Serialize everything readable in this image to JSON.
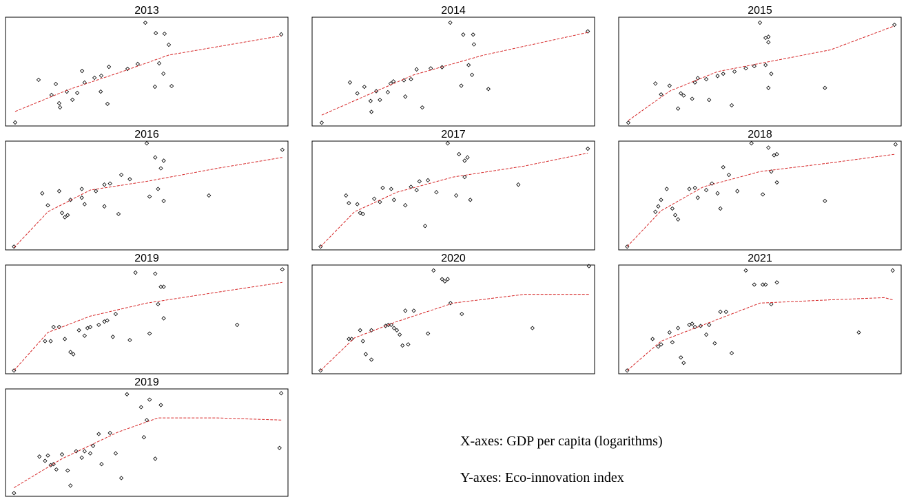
{
  "chart_data": [
    {
      "type": "scatter",
      "title": "2013",
      "xlim": [
        0,
        100
      ],
      "ylim": [
        0,
        100
      ],
      "series": [
        {
          "color": "#000000",
          "x": [
            3.4,
            11.7,
            17.8,
            16.3,
            19,
            19.3,
            21.7,
            23.7,
            25.4,
            27.1,
            28,
            31.5,
            33.9,
            33.7,
            36.6,
            36.1,
            43.2,
            46.8,
            49.5,
            53.2,
            56.3,
            57.8,
            54.4,
            55.9,
            52.9,
            58.8,
            97.6
          ],
          "values": [
            3.2,
            42.4,
            38.6,
            28.5,
            20.9,
            17.1,
            31.6,
            24.1,
            30.4,
            50.6,
            39.9,
            44.3,
            46.2,
            31.6,
            54.4,
            20.3,
            52.5,
            57,
            94.9,
            85.4,
            84.8,
            74.7,
            57.6,
            48.1,
            36.1,
            36.7,
            84.2
          ]
        },
        {
          "color": "#d62728",
          "x": [
            3.4,
            22.4,
            42,
            57.8,
            97.6
          ],
          "values": [
            13.3,
            33.5,
            50.6,
            65.2,
            82.9
          ]
        }
      ]
    },
    {
      "type": "scatter",
      "title": "2014",
      "xlim": [
        0,
        100
      ],
      "ylim": [
        0,
        100
      ],
      "series": [
        {
          "color": "#000000",
          "x": [
            3.4,
            13.4,
            16,
            18.5,
            20.7,
            21,
            22.7,
            24,
            26.8,
            27.8,
            28.8,
            32.5,
            35,
            37,
            33,
            39,
            42,
            46,
            48.9,
            53.5,
            57,
            57.3,
            55.4,
            56.6,
            52.8,
            62.4,
            97.6
          ],
          "values": [
            3,
            40,
            30,
            36,
            23,
            13,
            32,
            24,
            31,
            39,
            41,
            42,
            43,
            52,
            27,
            17,
            53,
            54,
            95,
            84,
            84,
            75,
            56,
            47,
            37,
            34,
            87
          ]
        },
        {
          "color": "#d62728",
          "x": [
            3.4,
            22.7,
            36,
            60.5,
            97.6
          ],
          "values": [
            10,
            32,
            47,
            65,
            86
          ]
        }
      ]
    },
    {
      "type": "scatter",
      "title": "2015",
      "xlim": [
        0,
        100
      ],
      "ylim": [
        0,
        100
      ],
      "series": [
        {
          "color": "#000000",
          "x": [
            3.4,
            13,
            15,
            18,
            21,
            22,
            23,
            26,
            27,
            28,
            31,
            32,
            35,
            37,
            40,
            41,
            45,
            48,
            50,
            52,
            53,
            53,
            52,
            54,
            53,
            73,
            97.6
          ],
          "values": [
            3,
            39,
            29,
            37,
            16,
            30,
            28,
            25,
            40,
            44,
            43,
            24,
            46,
            48,
            19,
            50,
            53,
            55,
            95,
            81,
            82,
            77,
            56,
            48,
            35,
            35,
            93
          ]
        },
        {
          "color": "#d62728",
          "x": [
            3.4,
            18,
            35,
            55,
            75,
            97.6
          ],
          "values": [
            5,
            32,
            50,
            60,
            70,
            92
          ]
        }
      ]
    },
    {
      "type": "scatter",
      "title": "2016",
      "xlim": [
        0,
        100
      ],
      "ylim": [
        0,
        100
      ],
      "series": [
        {
          "color": "#000000",
          "x": [
            3,
            13,
            15,
            19,
            20,
            21,
            22,
            23,
            27,
            27,
            28,
            32,
            35,
            35,
            37,
            40,
            41,
            44,
            50,
            51,
            53,
            55,
            56,
            54,
            56,
            72,
            98
          ],
          "values": [
            3,
            52,
            41,
            54,
            34,
            30,
            32,
            46,
            48,
            56,
            42,
            54,
            40,
            60,
            61,
            33,
            69,
            65,
            98,
            49,
            85,
            75,
            82,
            56,
            45,
            50,
            92
          ]
        },
        {
          "color": "#d62728",
          "x": [
            3,
            15,
            30,
            50,
            75,
            98
          ],
          "values": [
            2,
            35,
            55,
            63,
            75,
            85
          ]
        }
      ]
    },
    {
      "type": "scatter",
      "title": "2017",
      "xlim": [
        0,
        100
      ],
      "ylim": [
        0,
        100
      ],
      "series": [
        {
          "color": "#000000",
          "x": [
            3,
            12,
            13,
            16,
            17,
            18,
            22,
            24,
            25,
            28,
            29,
            33,
            35,
            37,
            38,
            40,
            41,
            44,
            48,
            51,
            52,
            54,
            55,
            54,
            56,
            73,
            97.6
          ],
          "values": [
            3,
            50,
            43,
            42,
            34,
            33,
            47,
            44,
            57,
            56,
            46,
            41,
            58,
            55,
            63,
            22,
            64,
            53,
            98,
            50,
            88,
            82,
            85,
            67,
            46,
            60,
            93
          ]
        },
        {
          "color": "#d62728",
          "x": [
            3,
            15,
            30,
            50,
            75,
            97.6
          ],
          "values": [
            3,
            35,
            53,
            67,
            77,
            89
          ]
        }
      ]
    },
    {
      "type": "scatter",
      "title": "2018",
      "xlim": [
        0,
        100
      ],
      "ylim": [
        0,
        100
      ],
      "series": [
        {
          "color": "#000000",
          "x": [
            3,
            13,
            14,
            15,
            17,
            19,
            20,
            21,
            25,
            27,
            28,
            31,
            33,
            35,
            36,
            37,
            39,
            42,
            47,
            51,
            53,
            55,
            56,
            54,
            56,
            73,
            98
          ],
          "values": [
            3,
            35,
            40,
            46,
            56,
            38,
            32,
            28,
            56,
            57,
            48,
            55,
            61,
            52,
            38,
            76,
            69,
            54,
            98,
            51,
            94,
            87,
            88,
            72,
            62,
            45,
            97
          ]
        },
        {
          "color": "#d62728",
          "x": [
            3,
            15,
            30,
            50,
            75,
            98
          ],
          "values": [
            3,
            36,
            58,
            72,
            80,
            88
          ]
        }
      ]
    },
    {
      "type": "scatter",
      "title": "2019",
      "xlim": [
        0,
        100
      ],
      "ylim": [
        0,
        100
      ],
      "series": [
        {
          "color": "#000000",
          "x": [
            3,
            14,
            16,
            17,
            19,
            21,
            23,
            24,
            26,
            28,
            29,
            30,
            33,
            35,
            36,
            38,
            39,
            44,
            46,
            51,
            53,
            55,
            56,
            54,
            56,
            82,
            98
          ],
          "values": [
            3,
            30,
            30,
            43,
            43,
            32,
            20,
            18,
            40,
            35,
            42,
            43,
            45,
            48,
            49,
            34,
            55,
            31,
            93,
            37,
            92,
            80,
            80,
            64,
            51,
            45,
            96
          ]
        },
        {
          "color": "#d62728",
          "x": [
            3,
            15,
            30,
            50,
            75,
            98
          ],
          "values": [
            3,
            38,
            53,
            65,
            75,
            84
          ]
        }
      ]
    },
    {
      "type": "scatter",
      "title": "2020",
      "xlim": [
        0,
        100
      ],
      "ylim": [
        0,
        100
      ],
      "series": [
        {
          "color": "#000000",
          "x": [
            3,
            13,
            14,
            17,
            18,
            19,
            21,
            21,
            26,
            27,
            28,
            29,
            30,
            31,
            32,
            33,
            34,
            36,
            41,
            43,
            46,
            47,
            48,
            49,
            53,
            78,
            98
          ],
          "values": [
            3,
            32,
            32,
            40,
            30,
            18,
            13,
            40,
            44,
            45,
            45,
            42,
            40,
            36,
            26,
            58,
            27,
            58,
            37,
            95,
            87,
            85,
            87,
            65,
            55,
            42,
            99
          ]
        },
        {
          "color": "#d62728",
          "x": [
            3,
            15,
            30,
            50,
            75,
            98
          ],
          "values": [
            3,
            33,
            48,
            65,
            73,
            73
          ]
        }
      ]
    },
    {
      "type": "scatter",
      "title": "2021",
      "xlim": [
        0,
        100
      ],
      "ylim": [
        0,
        100
      ],
      "series": [
        {
          "color": "#000000",
          "x": [
            3,
            12,
            14,
            15,
            18,
            19,
            21,
            22,
            23,
            25,
            26,
            27,
            29,
            31,
            32,
            34,
            36,
            38,
            40,
            45,
            48,
            51,
            52,
            54,
            56,
            85,
            97
          ],
          "values": [
            3,
            32,
            25,
            27,
            38,
            29,
            42,
            15,
            10,
            45,
            46,
            43,
            44,
            36,
            45,
            28,
            57,
            57,
            19,
            95,
            82,
            82,
            82,
            64,
            84,
            38,
            95
          ]
        },
        {
          "color": "#d62728",
          "x": [
            3,
            15,
            30,
            50,
            75,
            94,
            97
          ],
          "values": [
            3,
            30,
            45,
            65,
            68,
            70,
            68
          ]
        }
      ]
    },
    {
      "type": "scatter",
      "title": "2019",
      "xlim": [
        0,
        100
      ],
      "ylim": [
        0,
        100
      ],
      "series": [
        {
          "color": "#000000",
          "x": [
            3,
            12,
            14,
            15,
            16,
            17,
            18,
            20,
            22,
            23,
            25,
            27,
            28,
            30,
            31,
            33,
            34,
            37,
            39,
            41,
            43,
            48,
            49,
            50,
            51,
            53,
            55,
            97.6,
            97
          ],
          "values": [
            3,
            37,
            33,
            38,
            29,
            30,
            25,
            39,
            24,
            10,
            42,
            36,
            42,
            40,
            47,
            58,
            30,
            59,
            40,
            17,
            95,
            83,
            55,
            71,
            90,
            35,
            85,
            96,
            45
          ]
        },
        {
          "color": "#d62728",
          "x": [
            3,
            20,
            40,
            54,
            75,
            97.6
          ],
          "values": [
            8,
            35,
            60,
            73,
            73,
            71
          ]
        }
      ]
    }
  ],
  "annotations": [
    "X-axes: GDP per capita (logarithms)",
    "Y-axes: Eco-innovation index"
  ]
}
